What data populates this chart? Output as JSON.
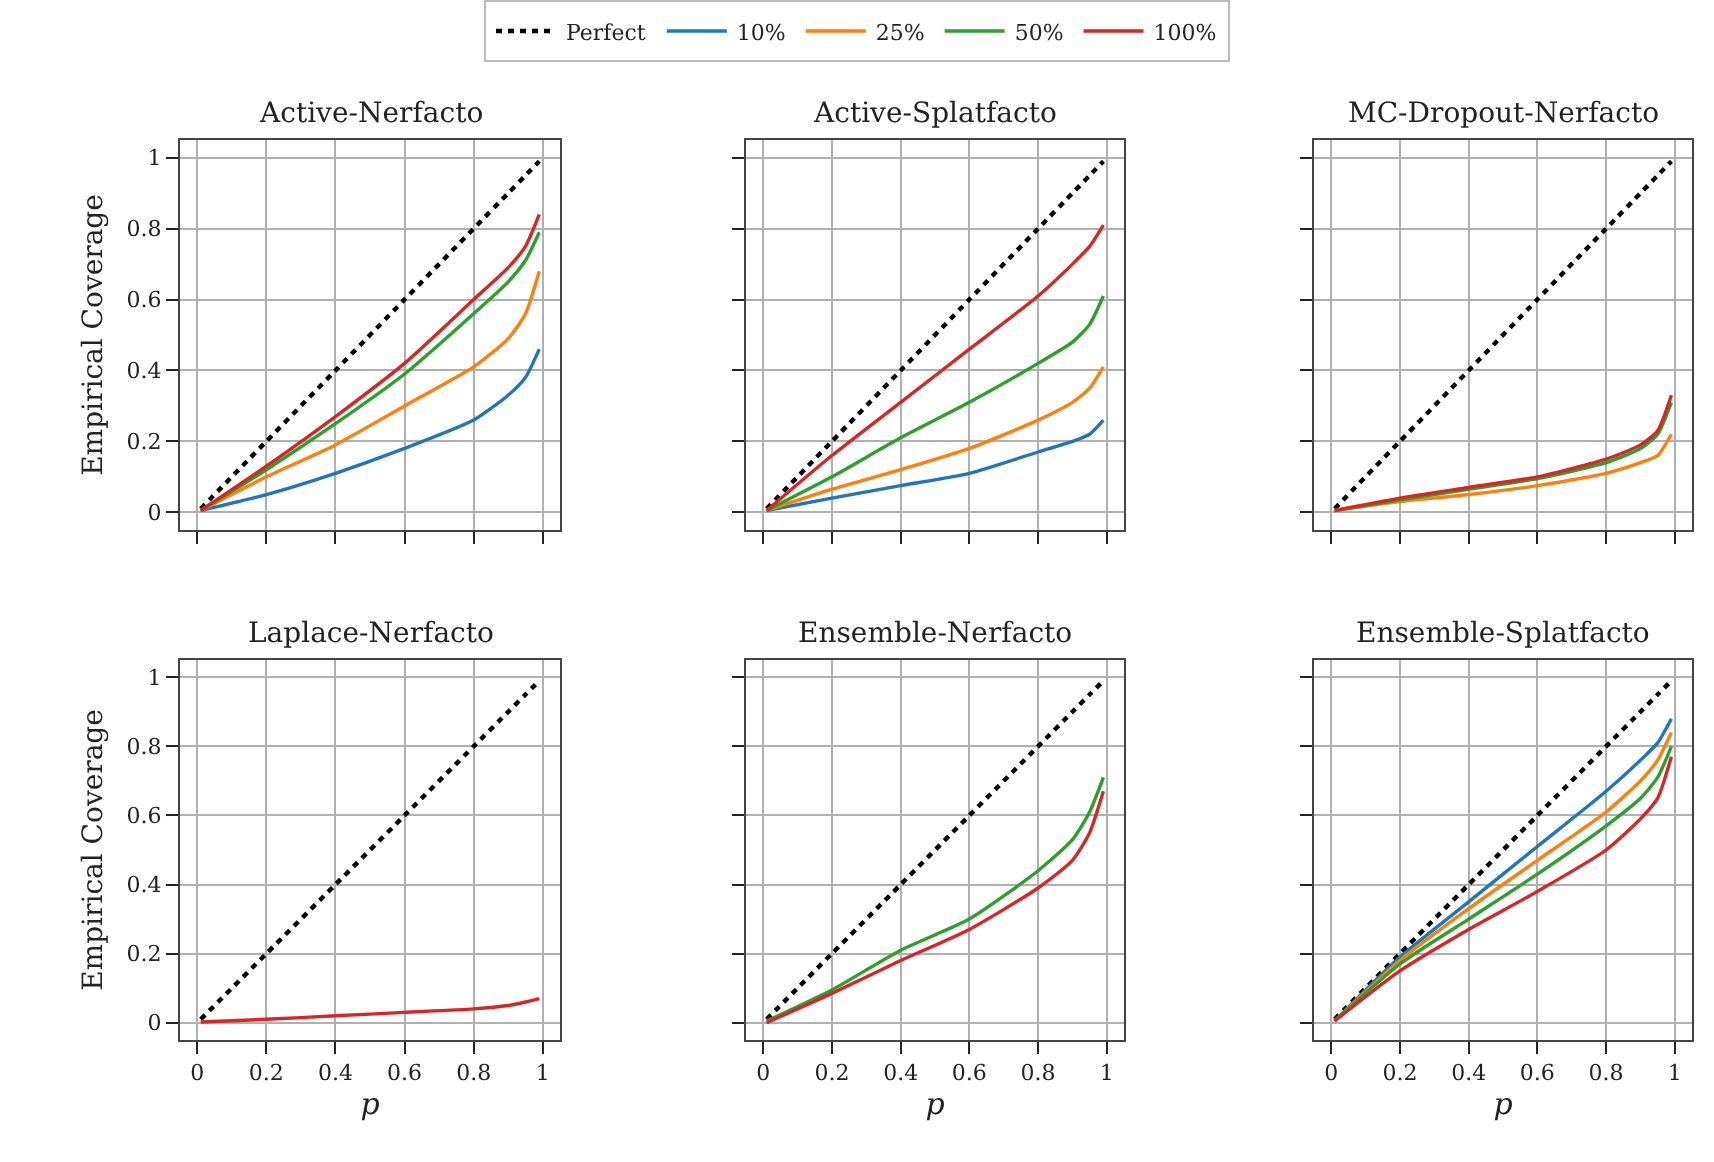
{
  "chart_data": [
    {
      "type": "line",
      "title": "Active-Nerfacto",
      "ylabel": "Empirical Coverage",
      "x": [
        0.01,
        0.2,
        0.4,
        0.6,
        0.8,
        0.9,
        0.95,
        0.99
      ],
      "xlim": [
        -0.05,
        1.05
      ],
      "ylim": [
        -0.05,
        1.05
      ],
      "xticks": [
        0,
        0.2,
        0.4,
        0.6,
        0.8,
        1
      ],
      "yticks": [
        0,
        0.2,
        0.4,
        0.6,
        0.8,
        1
      ],
      "grid": true,
      "legend": "top",
      "tick_labels": "y",
      "series": [
        {
          "name": "Perfect",
          "color": "#000000",
          "line_style": "dotted",
          "values": [
            0.01,
            0.2,
            0.4,
            0.6,
            0.8,
            0.9,
            0.95,
            0.99
          ]
        },
        {
          "name": "10%",
          "color": "#1f77b4",
          "values": [
            0.005,
            0.05,
            0.11,
            0.18,
            0.26,
            0.33,
            0.38,
            0.46
          ]
        },
        {
          "name": "25%",
          "color": "#ff7f0e",
          "values": [
            0.005,
            0.1,
            0.19,
            0.3,
            0.41,
            0.49,
            0.56,
            0.68
          ]
        },
        {
          "name": "50%",
          "color": "#2ca02c",
          "values": [
            0.005,
            0.12,
            0.25,
            0.39,
            0.56,
            0.65,
            0.71,
            0.79
          ]
        },
        {
          "name": "100%",
          "color": "#d62728",
          "values": [
            0.005,
            0.13,
            0.27,
            0.42,
            0.6,
            0.69,
            0.75,
            0.84
          ]
        }
      ]
    },
    {
      "type": "line",
      "title": "Active-Splatfacto",
      "x": [
        0.01,
        0.2,
        0.4,
        0.6,
        0.8,
        0.9,
        0.95,
        0.99
      ],
      "xlim": [
        -0.05,
        1.05
      ],
      "ylim": [
        -0.05,
        1.05
      ],
      "xticks": [
        0,
        0.2,
        0.4,
        0.6,
        0.8,
        1
      ],
      "yticks": [
        0,
        0.2,
        0.4,
        0.6,
        0.8,
        1
      ],
      "grid": true,
      "tick_labels": false,
      "series": [
        {
          "color": "#000000",
          "line_style": "dotted",
          "values": [
            0.01,
            0.2,
            0.4,
            0.6,
            0.8,
            0.9,
            0.95,
            0.99
          ]
        },
        {
          "color": "#1f77b4",
          "values": [
            0.005,
            0.04,
            0.075,
            0.11,
            0.17,
            0.2,
            0.22,
            0.26
          ]
        },
        {
          "color": "#ff7f0e",
          "values": [
            0.005,
            0.065,
            0.12,
            0.18,
            0.26,
            0.31,
            0.35,
            0.41
          ]
        },
        {
          "color": "#2ca02c",
          "values": [
            0.005,
            0.1,
            0.21,
            0.31,
            0.42,
            0.48,
            0.53,
            0.61
          ]
        },
        {
          "color": "#d62728",
          "values": [
            0.005,
            0.16,
            0.31,
            0.46,
            0.61,
            0.7,
            0.75,
            0.81
          ]
        }
      ]
    },
    {
      "type": "line",
      "title": "MC-Dropout-Nerfacto",
      "x": [
        0.01,
        0.2,
        0.4,
        0.6,
        0.8,
        0.9,
        0.95,
        0.99
      ],
      "xlim": [
        -0.05,
        1.05
      ],
      "ylim": [
        -0.05,
        1.05
      ],
      "xticks": [
        0,
        0.2,
        0.4,
        0.6,
        0.8,
        1
      ],
      "yticks": [
        0,
        0.2,
        0.4,
        0.6,
        0.8,
        1
      ],
      "grid": true,
      "tick_labels": false,
      "series": [
        {
          "color": "#000000",
          "line_style": "dotted",
          "values": [
            0.01,
            0.2,
            0.4,
            0.6,
            0.8,
            0.9,
            0.95,
            0.99
          ]
        },
        {
          "color": "#1f77b4",
          "values": [
            null,
            null,
            null,
            null,
            null,
            null,
            null,
            null
          ]
        },
        {
          "color": "#ff7f0e",
          "values": [
            0.005,
            0.03,
            0.05,
            0.075,
            0.11,
            0.14,
            0.16,
            0.22
          ]
        },
        {
          "color": "#2ca02c",
          "values": [
            0.005,
            0.035,
            0.065,
            0.095,
            0.14,
            0.18,
            0.22,
            0.31
          ]
        },
        {
          "color": "#d62728",
          "values": [
            0.005,
            0.04,
            0.07,
            0.1,
            0.15,
            0.19,
            0.23,
            0.33
          ]
        }
      ]
    },
    {
      "type": "line",
      "title": "Laplace-Nerfacto",
      "xlabel": "p",
      "ylabel": "Empirical Coverage",
      "x": [
        0.01,
        0.2,
        0.4,
        0.6,
        0.8,
        0.9,
        0.95,
        0.99
      ],
      "xlim": [
        -0.05,
        1.05
      ],
      "ylim": [
        -0.05,
        1.05
      ],
      "xticks": [
        0,
        0.2,
        0.4,
        0.6,
        0.8,
        1
      ],
      "yticks": [
        0,
        0.2,
        0.4,
        0.6,
        0.8,
        1
      ],
      "grid": true,
      "series": [
        {
          "color": "#000000",
          "line_style": "dotted",
          "values": [
            0.01,
            0.2,
            0.4,
            0.6,
            0.8,
            0.9,
            0.95,
            0.99
          ]
        },
        {
          "color": "#1f77b4",
          "values": [
            null,
            null,
            null,
            null,
            null,
            null,
            null,
            null
          ]
        },
        {
          "color": "#ff7f0e",
          "values": [
            null,
            null,
            null,
            null,
            null,
            null,
            null,
            null
          ]
        },
        {
          "color": "#2ca02c",
          "values": [
            null,
            null,
            null,
            null,
            null,
            null,
            null,
            null
          ]
        },
        {
          "color": "#d62728",
          "values": [
            0.002,
            0.01,
            0.02,
            0.03,
            0.04,
            0.05,
            0.06,
            0.07
          ]
        }
      ]
    },
    {
      "type": "line",
      "title": "Ensemble-Nerfacto",
      "xlabel": "p",
      "x": [
        0.01,
        0.2,
        0.4,
        0.6,
        0.8,
        0.9,
        0.95,
        0.99
      ],
      "xlim": [
        -0.05,
        1.05
      ],
      "ylim": [
        -0.05,
        1.05
      ],
      "xticks": [
        0,
        0.2,
        0.4,
        0.6,
        0.8,
        1
      ],
      "yticks": [
        0,
        0.2,
        0.4,
        0.6,
        0.8,
        1
      ],
      "grid": true,
      "tick_labels": "x",
      "series": [
        {
          "color": "#000000",
          "line_style": "dotted",
          "values": [
            0.01,
            0.2,
            0.4,
            0.6,
            0.8,
            0.9,
            0.95,
            0.99
          ]
        },
        {
          "color": "#1f77b4",
          "values": [
            null,
            null,
            null,
            null,
            null,
            null,
            null,
            null
          ]
        },
        {
          "color": "#ff7f0e",
          "values": [
            null,
            null,
            null,
            null,
            null,
            null,
            null,
            null
          ]
        },
        {
          "color": "#2ca02c",
          "values": [
            0.005,
            0.095,
            0.21,
            0.3,
            0.44,
            0.53,
            0.61,
            0.71
          ]
        },
        {
          "color": "#d62728",
          "values": [
            0,
            0.085,
            0.18,
            0.27,
            0.39,
            0.47,
            0.55,
            0.67
          ]
        }
      ]
    },
    {
      "type": "line",
      "title": "Ensemble-Splatfacto",
      "xlabel": "p",
      "x": [
        0.01,
        0.2,
        0.4,
        0.6,
        0.8,
        0.9,
        0.95,
        0.99
      ],
      "xlim": [
        -0.05,
        1.05
      ],
      "ylim": [
        -0.05,
        1.05
      ],
      "xticks": [
        0,
        0.2,
        0.4,
        0.6,
        0.8,
        1
      ],
      "yticks": [
        0,
        0.2,
        0.4,
        0.6,
        0.8,
        1
      ],
      "grid": true,
      "tick_labels": "x",
      "series": [
        {
          "color": "#000000",
          "line_style": "dotted",
          "values": [
            0.01,
            0.2,
            0.4,
            0.6,
            0.8,
            0.9,
            0.95,
            0.99
          ]
        },
        {
          "color": "#1f77b4",
          "values": [
            0.005,
            0.19,
            0.35,
            0.51,
            0.67,
            0.76,
            0.81,
            0.88
          ]
        },
        {
          "color": "#ff7f0e",
          "values": [
            0.005,
            0.18,
            0.33,
            0.47,
            0.61,
            0.7,
            0.76,
            0.84
          ]
        },
        {
          "color": "#2ca02c",
          "values": [
            0.005,
            0.17,
            0.3,
            0.43,
            0.57,
            0.65,
            0.71,
            0.8
          ]
        },
        {
          "color": "#d62728",
          "values": [
            0.005,
            0.15,
            0.27,
            0.38,
            0.5,
            0.59,
            0.65,
            0.77
          ]
        }
      ]
    }
  ]
}
